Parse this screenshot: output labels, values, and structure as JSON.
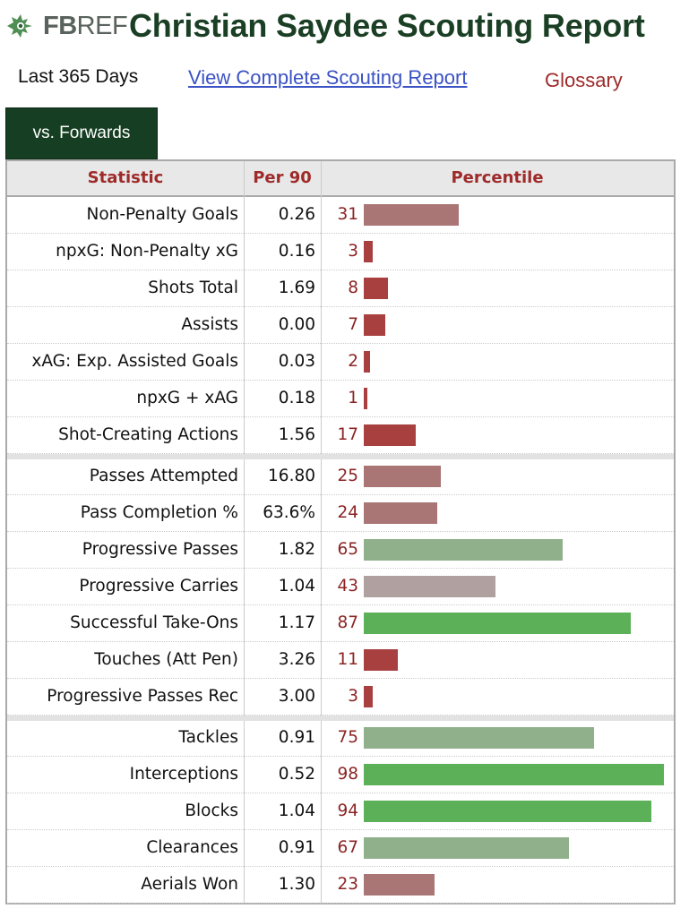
{
  "header": {
    "logo": {
      "bold": "FB",
      "light": "REF"
    },
    "title": "Christian Saydee Scouting Report"
  },
  "subnav": {
    "period": "Last 365 Days",
    "report_link": "View Complete Scouting Report",
    "glossary": "Glossary"
  },
  "tab": {
    "label": "vs. Forwards"
  },
  "table": {
    "columns": [
      "Statistic",
      "Per 90",
      "Percentile"
    ],
    "colors": {
      "very_low": "#a94040",
      "low": "#a97575",
      "mid": "#b0a0a0",
      "high": "#8fb08a",
      "very_high": "#5cb057"
    },
    "groups": [
      [
        {
          "stat": "Non-Penalty Goals",
          "per90": "0.26",
          "pct": 31
        },
        {
          "stat": "npxG: Non-Penalty xG",
          "per90": "0.16",
          "pct": 3
        },
        {
          "stat": "Shots Total",
          "per90": "1.69",
          "pct": 8
        },
        {
          "stat": "Assists",
          "per90": "0.00",
          "pct": 7
        },
        {
          "stat": "xAG: Exp. Assisted Goals",
          "per90": "0.03",
          "pct": 2
        },
        {
          "stat": "npxG + xAG",
          "per90": "0.18",
          "pct": 1
        },
        {
          "stat": "Shot-Creating Actions",
          "per90": "1.56",
          "pct": 17
        }
      ],
      [
        {
          "stat": "Passes Attempted",
          "per90": "16.80",
          "pct": 25
        },
        {
          "stat": "Pass Completion %",
          "per90": "63.6%",
          "pct": 24
        },
        {
          "stat": "Progressive Passes",
          "per90": "1.82",
          "pct": 65
        },
        {
          "stat": "Progressive Carries",
          "per90": "1.04",
          "pct": 43
        },
        {
          "stat": "Successful Take-Ons",
          "per90": "1.17",
          "pct": 87
        },
        {
          "stat": "Touches (Att Pen)",
          "per90": "3.26",
          "pct": 11
        },
        {
          "stat": "Progressive Passes Rec",
          "per90": "3.00",
          "pct": 3
        }
      ],
      [
        {
          "stat": "Tackles",
          "per90": "0.91",
          "pct": 75
        },
        {
          "stat": "Interceptions",
          "per90": "0.52",
          "pct": 98
        },
        {
          "stat": "Blocks",
          "per90": "1.04",
          "pct": 94
        },
        {
          "stat": "Clearances",
          "per90": "0.91",
          "pct": 67
        },
        {
          "stat": "Aerials Won",
          "per90": "1.30",
          "pct": 23
        }
      ]
    ]
  }
}
